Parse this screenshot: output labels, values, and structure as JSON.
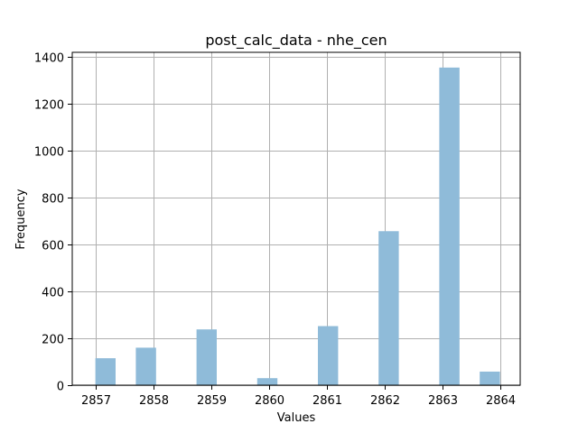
{
  "chart_data": {
    "type": "bar",
    "title": "post_calc_data - nhe_cen",
    "xlabel": "Values",
    "ylabel": "Frequency",
    "x_ticks": [
      2857,
      2858,
      2859,
      2860,
      2861,
      2862,
      2863,
      2864
    ],
    "y_ticks": [
      0,
      200,
      400,
      600,
      800,
      1000,
      1200,
      1400
    ],
    "xlim": [
      2856.6,
      2864.35
    ],
    "ylim": [
      0,
      1420
    ],
    "grid": true,
    "bar_color": "#8fbbd9",
    "bars": [
      {
        "x_start": 2857.0,
        "x_end": 2857.35,
        "value": 115
      },
      {
        "x_start": 2857.7,
        "x_end": 2858.05,
        "value": 160
      },
      {
        "x_start": 2858.75,
        "x_end": 2859.1,
        "value": 238
      },
      {
        "x_start": 2859.8,
        "x_end": 2860.15,
        "value": 30
      },
      {
        "x_start": 2860.85,
        "x_end": 2861.2,
        "value": 252
      },
      {
        "x_start": 2861.9,
        "x_end": 2862.25,
        "value": 657
      },
      {
        "x_start": 2862.95,
        "x_end": 2863.3,
        "value": 1355
      },
      {
        "x_start": 2863.65,
        "x_end": 2864.0,
        "value": 58
      }
    ]
  }
}
